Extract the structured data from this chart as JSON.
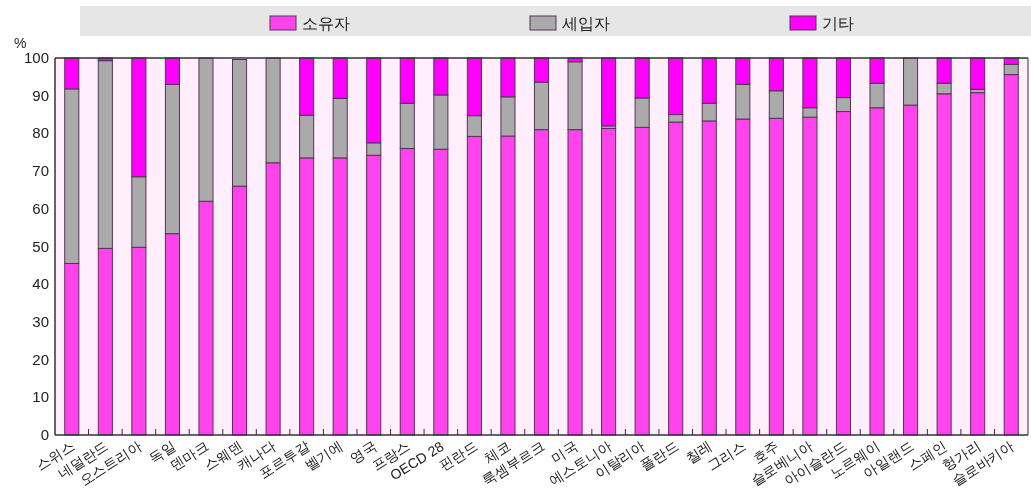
{
  "chart_data": {
    "type": "bar",
    "stacked": true,
    "ylabel": "%",
    "ylim": [
      0,
      100
    ],
    "yticks": [
      0,
      10,
      20,
      30,
      40,
      50,
      60,
      70,
      80,
      90,
      100
    ],
    "legend": "top",
    "grid": false,
    "categories": [
      "스위스",
      "네덜란드",
      "오스트리아",
      "독일",
      "덴마크",
      "스웨덴",
      "캐나다",
      "포르투갈",
      "벨기에",
      "영국",
      "프랑스",
      "OECD 28",
      "핀란드",
      "체코",
      "룩셈부르크",
      "미국",
      "에스토니아",
      "이탈리아",
      "폴란드",
      "칠레",
      "그리스",
      "호주",
      "슬로베니아",
      "아이슬란드",
      "노르웨이",
      "아일랜드",
      "스페인",
      "헝가리",
      "슬로바키아"
    ],
    "series": [
      {
        "name": "소유자",
        "color": "#ff44ee",
        "values": [
          45.5,
          49.5,
          49.8,
          53.4,
          62,
          66,
          72.2,
          73.5,
          73.5,
          74.2,
          76,
          75.8,
          79.2,
          79.3,
          81,
          81,
          81.3,
          81.6,
          83,
          83.3,
          83.8,
          84,
          84.3,
          85.8,
          86.8,
          87.5,
          90.5,
          90.8,
          95.6
        ]
      },
      {
        "name": "세입자",
        "color": "#aaaaaa",
        "values": [
          46.3,
          49.8,
          18.7,
          39.6,
          38,
          33.6,
          27.8,
          11.3,
          15.8,
          3.3,
          12,
          14.4,
          5.5,
          10.4,
          12.6,
          18,
          0.7,
          7.8,
          2,
          4.7,
          9.2,
          7.3,
          2.5,
          3.7,
          6.5,
          12.5,
          2.8,
          0.9,
          2.7
        ]
      },
      {
        "name": "기타",
        "color": "#ff00ff",
        "values": [
          8.2,
          0.7,
          31.5,
          7,
          0,
          null,
          0,
          15.2,
          10.7,
          22.5,
          12,
          9.8,
          15.3,
          10.3,
          6.4,
          1,
          18,
          10.6,
          15,
          12,
          7,
          8.7,
          13.2,
          10.5,
          6.7,
          0,
          6.7,
          8.3,
          1.7
        ]
      }
    ]
  }
}
